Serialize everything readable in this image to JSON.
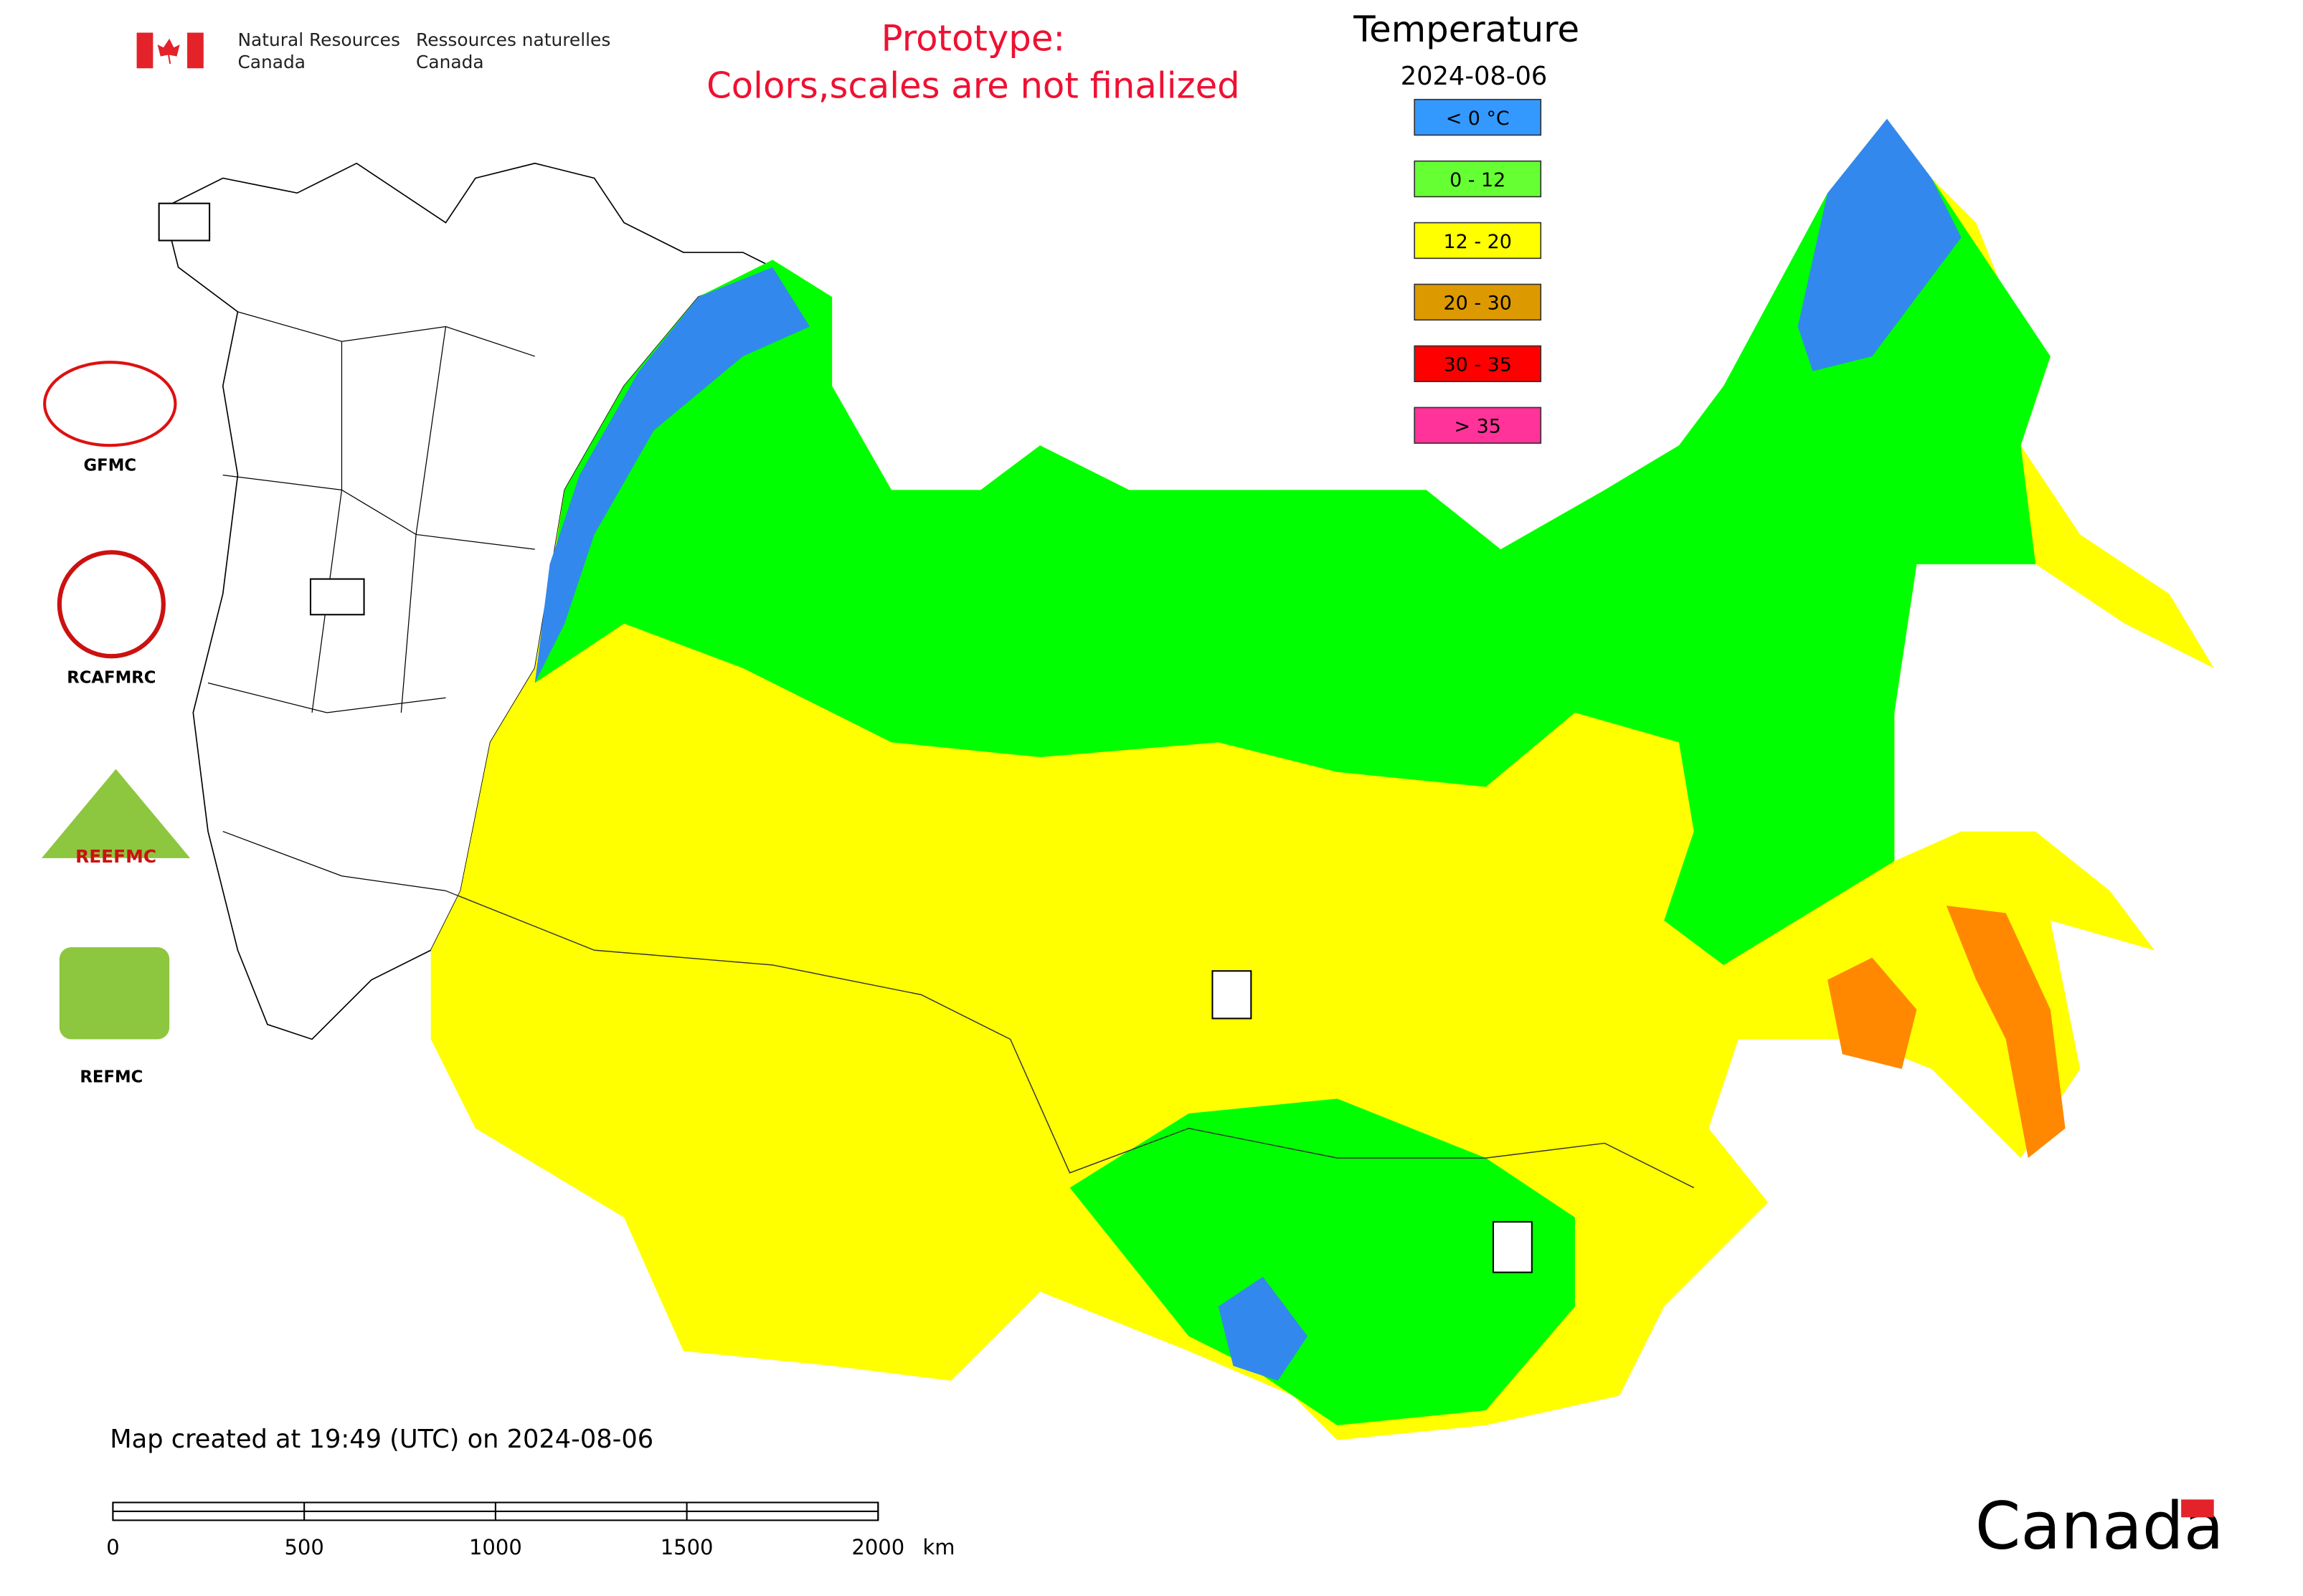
{
  "header": {
    "agency_en": [
      "Natural Resources",
      "Canada"
    ],
    "agency_fr": [
      "Ressources naturelles",
      "Canada"
    ],
    "notice": [
      "Prototype:",
      "Colors,scales are not finalized"
    ]
  },
  "legend": {
    "title": "Temperature",
    "date": "2024-08-06",
    "items": [
      {
        "label": "< 0 °C",
        "color": "#3399ff"
      },
      {
        "label": "0 - 12",
        "color": "#66ff33"
      },
      {
        "label": "12 - 20",
        "color": "#ffff00"
      },
      {
        "label": "20 - 30",
        "color": "#dd9900"
      },
      {
        "label": "30 - 35",
        "color": "#ff0000"
      },
      {
        "label": "> 35",
        "color": "#ff3399"
      }
    ]
  },
  "logos": [
    "GFMC",
    "RCAFMRC",
    "REEFMC",
    "REFMC"
  ],
  "footer": {
    "created": "Map created at 19:49 (UTC) on 2024-08-06",
    "wordmark": "Canada"
  },
  "scale_bar": {
    "ticks": [
      0,
      500,
      1000,
      1500,
      2000
    ],
    "unit": "km"
  }
}
